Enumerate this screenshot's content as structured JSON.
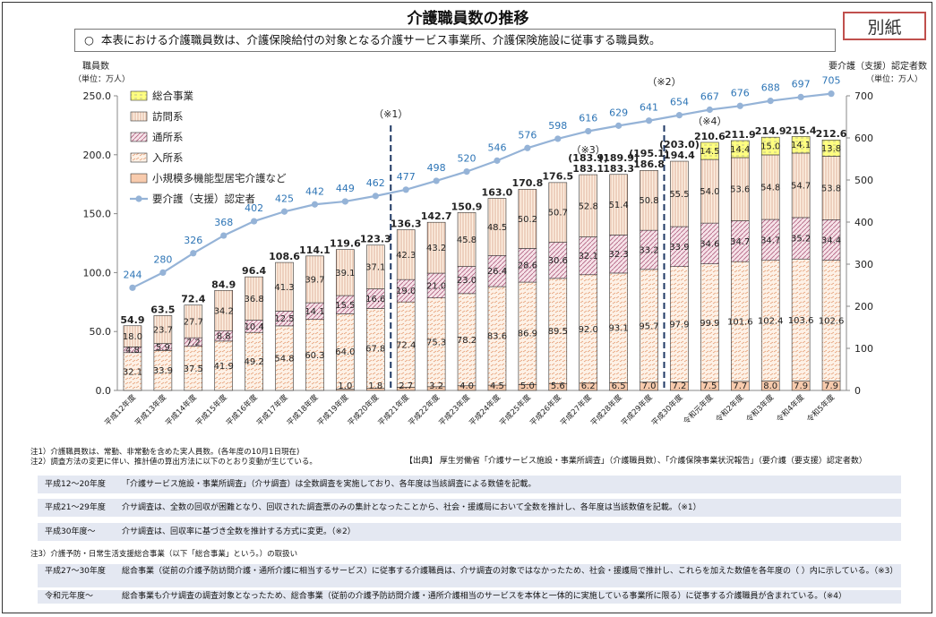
{
  "title": "介護職員数の推移",
  "stamp": "別紙",
  "note_box": "本表における介護職員数は、介護保険給付の対象となる介護サービス事業所、介護保険施設に従事する職員数。",
  "note_box_marker": "○",
  "chart_data": {
    "type": "bar",
    "stacked": true,
    "y_left_title": "職員数",
    "y_left_unit": "（単位：万人）",
    "y_right_title": "要介護（支援）認定者数",
    "y_right_unit": "（単位：万人）",
    "ylim": [
      0,
      250
    ],
    "y_ticks": [
      "0.0",
      "50.0",
      "100.0",
      "150.0",
      "200.0",
      "250.0"
    ],
    "y2lim": [
      0,
      700
    ],
    "y2_ticks": [
      "0",
      "100",
      "200",
      "300",
      "400",
      "500",
      "600",
      "700"
    ],
    "categories": [
      "平成12年度",
      "平成13年度",
      "平成14年度",
      "平成15年度",
      "平成16年度",
      "平成17年度",
      "平成18年度",
      "平成19年度",
      "平成20年度",
      "平成21年度",
      "平成22年度",
      "平成23年度",
      "平成24年度",
      "平成25年度",
      "平成26年度",
      "平成27年度",
      "平成28年度",
      "平成29年度",
      "平成30年度",
      "令和元年度",
      "令和2年度",
      "令和3年度",
      "令和4年度",
      "令和5年度"
    ],
    "series": [
      {
        "name": "小規模多機能型居宅介護など",
        "color": "#f8cbad",
        "pattern": "solid",
        "values": [
          null,
          null,
          null,
          null,
          null,
          null,
          null,
          1.0,
          1.8,
          2.7,
          3.2,
          4.0,
          4.5,
          5.0,
          5.6,
          6.2,
          6.5,
          7.0,
          7.2,
          7.5,
          7.7,
          8.0,
          7.9,
          7.9
        ],
        "labels": [
          "",
          "",
          "",
          "",
          "",
          "",
          "",
          "1.0",
          "1.8",
          "2.7",
          "3.2",
          "4.0",
          "4.5",
          "5.0",
          "5.6",
          "6.2",
          "6.5",
          "7.0",
          "7.2",
          "7.5",
          "7.7",
          "8.0",
          "7.9",
          "7.9"
        ]
      },
      {
        "name": "入所系",
        "color": "#f2c7a6",
        "pattern": "dots",
        "values": [
          32.1,
          33.9,
          37.5,
          41.9,
          49.2,
          54.8,
          60.3,
          64.0,
          67.8,
          72.4,
          75.3,
          78.2,
          83.6,
          86.9,
          89.5,
          92.0,
          93.1,
          95.7,
          97.9,
          99.9,
          101.6,
          102.4,
          103.6,
          102.6
        ],
        "labels": [
          "32.1",
          "33.9",
          "37.5",
          "41.9",
          "49.2",
          "54.8",
          "60.3",
          "64.0",
          "67.8",
          "72.4",
          "75.3",
          "78.2",
          "83.6",
          "86.9",
          "89.5",
          "92.0",
          "93.1",
          "95.7",
          "97.9",
          "99.9",
          "101.6",
          "102.4",
          "103.6",
          "102.6"
        ]
      },
      {
        "name": "通所系",
        "color": "#d8a9b8",
        "pattern": "diag",
        "values": [
          4.8,
          5.9,
          7.2,
          8.8,
          10.4,
          12.5,
          14.1,
          15.5,
          16.6,
          19.0,
          21.0,
          23.0,
          26.4,
          28.6,
          30.6,
          32.1,
          32.3,
          33.2,
          33.9,
          34.6,
          34.7,
          34.7,
          35.2,
          34.4
        ],
        "labels": [
          "4.8",
          "5.9",
          "7.2",
          "8.8",
          "10.4",
          "12.5",
          "14.1",
          "15.5",
          "16.6",
          "19.0",
          "21.0",
          "23.0",
          "26.4",
          "28.6",
          "30.6",
          "32.1",
          "32.3",
          "33.2",
          "33.9",
          "34.6",
          "34.7",
          "34.7",
          "35.2",
          "34.4"
        ]
      },
      {
        "name": "訪問系",
        "color": "#f0c9a8",
        "pattern": "vert",
        "values": [
          18.0,
          23.7,
          27.7,
          34.2,
          36.8,
          41.3,
          39.7,
          39.1,
          37.1,
          42.3,
          43.2,
          45.8,
          48.5,
          50.2,
          50.7,
          52.8,
          51.4,
          50.8,
          55.5,
          54.0,
          53.6,
          54.8,
          54.7,
          53.8
        ],
        "labels": [
          "18.0",
          "23.7",
          "27.7",
          "34.2",
          "36.8",
          "41.3",
          "39.7",
          "39.1",
          "37.1",
          "42.3",
          "43.2",
          "45.8",
          "48.5",
          "50.2",
          "50.7",
          "52.8",
          "51.4",
          "50.8",
          "55.5",
          "54.0",
          "53.6",
          "54.8",
          "54.7",
          "53.8"
        ]
      },
      {
        "name": "総合事業",
        "color": "#ffff66",
        "pattern": "dashed",
        "values": [
          null,
          null,
          null,
          null,
          null,
          null,
          null,
          null,
          null,
          null,
          null,
          null,
          null,
          null,
          null,
          null,
          null,
          null,
          null,
          14.5,
          14.4,
          15.0,
          14.1,
          13.8
        ],
        "labels": [
          "",
          "",
          "",
          "",
          "",
          "",
          "",
          "",
          "",
          "",
          "",
          "",
          "",
          "",
          "",
          "",
          "",
          "",
          "",
          "14.5",
          "14.4",
          "15.0",
          "14.1",
          "13.8"
        ]
      }
    ],
    "totals": [
      "54.9",
      "63.5",
      "72.4",
      "84.9",
      "96.4",
      "108.6",
      "114.1",
      "119.6",
      "123.3",
      "136.3",
      "142.7",
      "150.9",
      "163.0",
      "170.8",
      "176.5",
      "183.1",
      "183.3",
      "186.8",
      "194.4",
      "210.6",
      "211.9",
      "214.9",
      "215.4",
      "212.6"
    ],
    "totals_values": [
      54.9,
      63.5,
      72.4,
      84.9,
      96.4,
      108.6,
      114.1,
      119.6,
      123.3,
      136.3,
      142.7,
      150.9,
      163.0,
      170.8,
      176.5,
      183.1,
      183.3,
      186.8,
      194.4,
      210.6,
      211.9,
      214.9,
      215.4,
      212.6
    ],
    "paren_totals": [
      {
        "index": 15,
        "text": "(183.9)"
      },
      {
        "index": 16,
        "text": "(189.9)"
      },
      {
        "index": 17,
        "text": "(195.1)"
      },
      {
        "index": 18,
        "text": "(203.0)"
      }
    ],
    "line": {
      "name": "要介護（支援）認定者",
      "color": "#95b3d7",
      "label_color": "#2e75b6",
      "values": [
        244,
        280,
        326,
        368,
        402,
        425,
        442,
        449,
        462,
        477,
        498,
        520,
        546,
        576,
        598,
        616,
        629,
        641,
        654,
        667,
        676,
        688,
        697,
        705
      ]
    },
    "markers": [
      {
        "text": "（※1）",
        "between": [
          8,
          9
        ]
      },
      {
        "text": "（※2）",
        "between": [
          17,
          18
        ]
      },
      {
        "text": "（※3）",
        "at": 15
      },
      {
        "text": "（※4）",
        "at": 19
      }
    ],
    "legend_order": [
      "総合事業",
      "訪問系",
      "通所系",
      "入所系",
      "小規模多機能型居宅介護など",
      "要介護（支援）認定者"
    ]
  },
  "notes": {
    "n1": "注1）介護職員数は、常勤、非常勤を含めた実人員数。(各年度の10月1日現在)",
    "n2": "注2）調査方法の変更に伴い、推計値の算出方法に以下のとおり変動が生じている。",
    "source": "【出典】 厚生労働省「介護サービス施設・事業所調査」（介護職員数）、「介護保険事業状況報告」（要介護（要支援）認定者数）",
    "periods": [
      {
        "label": "平成12～20年度",
        "text": "「介護サービス施設・事業所調査」（介サ調査）は全数調査を実施しており、各年度は当該調査による数値を記載。"
      },
      {
        "label": "平成21～29年度",
        "text": "介サ調査は、全数の回収が困難となり、回収された調査票のみの集計となったことから、社会・援護局において全数を推計し、各年度は当該数値を記載。（※1）"
      },
      {
        "label": "平成30年度～",
        "text": "介サ調査は、回収率に基づき全数を推計する方式に変更。（※2）"
      }
    ],
    "n3": "注3）介護予防・日常生活支援総合事業（以下「総合事業」という。）の取扱い",
    "sogo": [
      {
        "label": "平成27～30年度",
        "text": "総合事業（従前の介護予防訪問介護・通所介護に相当するサービス）に従事する介護職員は、介サ調査の対象ではなかったため、社会・援護局で推計し、これらを加えた数値を各年度の（ ）内に示している。（※3）"
      },
      {
        "label": "令和元年度～",
        "text": "総合事業も介サ調査の調査対象となったため、総合事業（従前の介護予防訪問介護・通所介護相当のサービスを本体と一体的に実施している事業所に限る）に従事する介護職員が含まれている。（※4）"
      }
    ]
  }
}
